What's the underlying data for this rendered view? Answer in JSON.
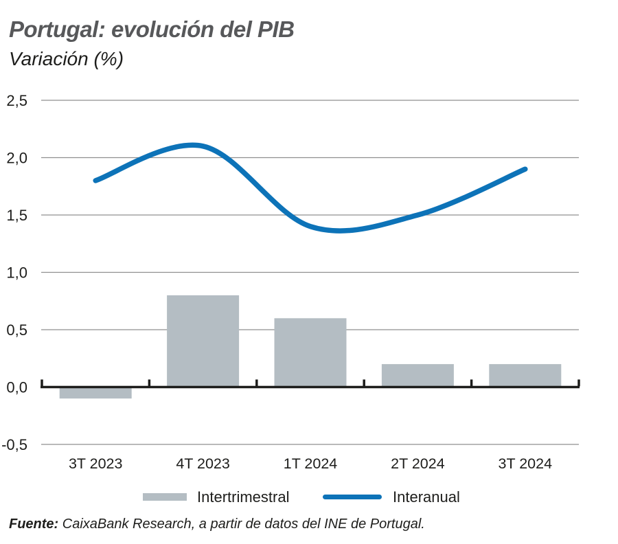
{
  "header": {
    "title": "Portugal: evolución del PIB",
    "subtitle": "Variación (%)"
  },
  "footer": {
    "source_label": "Fuente:",
    "source_text": "CaixaBank Research, a partir de datos del INE de Portugal."
  },
  "colors": {
    "title": "#57585a",
    "text": "#1d1d1b",
    "grid": "#8f8f8f",
    "axis": "#1d1d1b",
    "bar": "#b4bdc3",
    "line": "#0d73b8"
  },
  "chart_data": {
    "type": "bar",
    "title": "Portugal: evolución del PIB",
    "subtitle": "Variación (%)",
    "xlabel": "",
    "ylabel": "Variación (%)",
    "categories": [
      "3T 2023",
      "4T 2023",
      "1T 2024",
      "2T 2024",
      "3T 2024"
    ],
    "series": [
      {
        "name": "Intertrimestral",
        "type": "bar",
        "values": [
          -0.1,
          0.8,
          0.6,
          0.2,
          0.2
        ],
        "color": "#b4bdc3"
      },
      {
        "name": "Interanual",
        "type": "line",
        "smooth": true,
        "values": [
          1.8,
          2.1,
          1.4,
          1.5,
          1.9
        ],
        "color": "#0d73b8"
      }
    ],
    "ylim": [
      -0.5,
      2.5
    ],
    "yticks": [
      2.5,
      2.0,
      1.5,
      1.0,
      0.5,
      0.0,
      -0.5
    ],
    "ytick_labels": [
      "2,5",
      "2,0",
      "1,5",
      "1,0",
      "0,5",
      "0,0",
      "-0,5"
    ],
    "grid": true,
    "legend_position": "bottom"
  }
}
